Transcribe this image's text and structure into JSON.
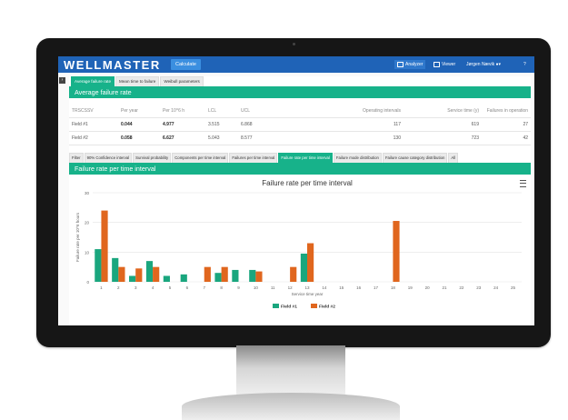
{
  "app": {
    "logo": "WELLMASTER",
    "calculate_label": "Calculate",
    "nav": [
      {
        "label": "Analyzer",
        "icon": "chart-icon",
        "active": true
      },
      {
        "label": "Viewer",
        "icon": "table-icon",
        "active": false
      },
      {
        "label": "Jørgen Nævik",
        "icon": "user-icon",
        "active": false
      },
      {
        "label": "?",
        "icon": "help-icon",
        "active": false
      }
    ]
  },
  "top_tabs": [
    "Average failure rate",
    "Mean time to failure",
    "Weibull parameters"
  ],
  "section1_title": "Average failure rate",
  "table": {
    "headers": [
      "TRSCSSV",
      "Per year",
      "Per 10^6 h",
      "LCL",
      "UCL",
      "Operating intervals",
      "Service time (y)",
      "Failures in operation"
    ],
    "rows": [
      [
        "Field #1",
        "0.044",
        "4.977",
        "3.515",
        "6.868",
        "117",
        "619",
        "27"
      ],
      [
        "Field #2",
        "0.058",
        "6.627",
        "5.043",
        "8.577",
        "130",
        "723",
        "42"
      ]
    ]
  },
  "lower_tabs": [
    "Filter",
    "90% Confidence interval",
    "Survival probability",
    "Components per time interval",
    "Failures per time interval",
    "Failure rate per time interval",
    "Failure mode distribution",
    "Failure cause category distribution",
    "All"
  ],
  "section2_title": "Failure rate per time interval",
  "colors": {
    "field1": "#1aa67e",
    "field2": "#e0661e",
    "accent": "#17b28a",
    "topbar": "#1f63b7"
  },
  "chart_data": {
    "type": "bar",
    "title": "Failure rate per time interval",
    "xlabel": "Service time year",
    "ylabel": "Failure rate per 10^6 hours",
    "ylim": [
      0,
      30
    ],
    "yticks": [
      0,
      10,
      20,
      30
    ],
    "categories": [
      "1",
      "2",
      "3",
      "4",
      "5",
      "6",
      "7",
      "8",
      "9",
      "10",
      "11",
      "12",
      "13",
      "14",
      "15",
      "16",
      "17",
      "18",
      "19",
      "20",
      "21",
      "22",
      "23",
      "24",
      "25"
    ],
    "series": [
      {
        "name": "Field #1",
        "values": [
          11,
          8,
          2,
          7,
          2,
          2.5,
          0,
          3,
          4,
          4,
          0,
          0,
          9.5,
          0,
          0,
          0,
          0,
          0,
          0,
          0,
          0,
          0,
          0,
          0,
          0
        ]
      },
      {
        "name": "Field #2",
        "values": [
          24,
          5,
          4.5,
          5,
          0,
          0,
          5,
          5,
          0,
          3.5,
          0,
          5,
          13,
          0,
          0,
          0,
          0,
          20.5,
          0,
          0,
          0,
          0,
          0,
          0,
          0
        ]
      }
    ],
    "legend_position": "bottom"
  }
}
